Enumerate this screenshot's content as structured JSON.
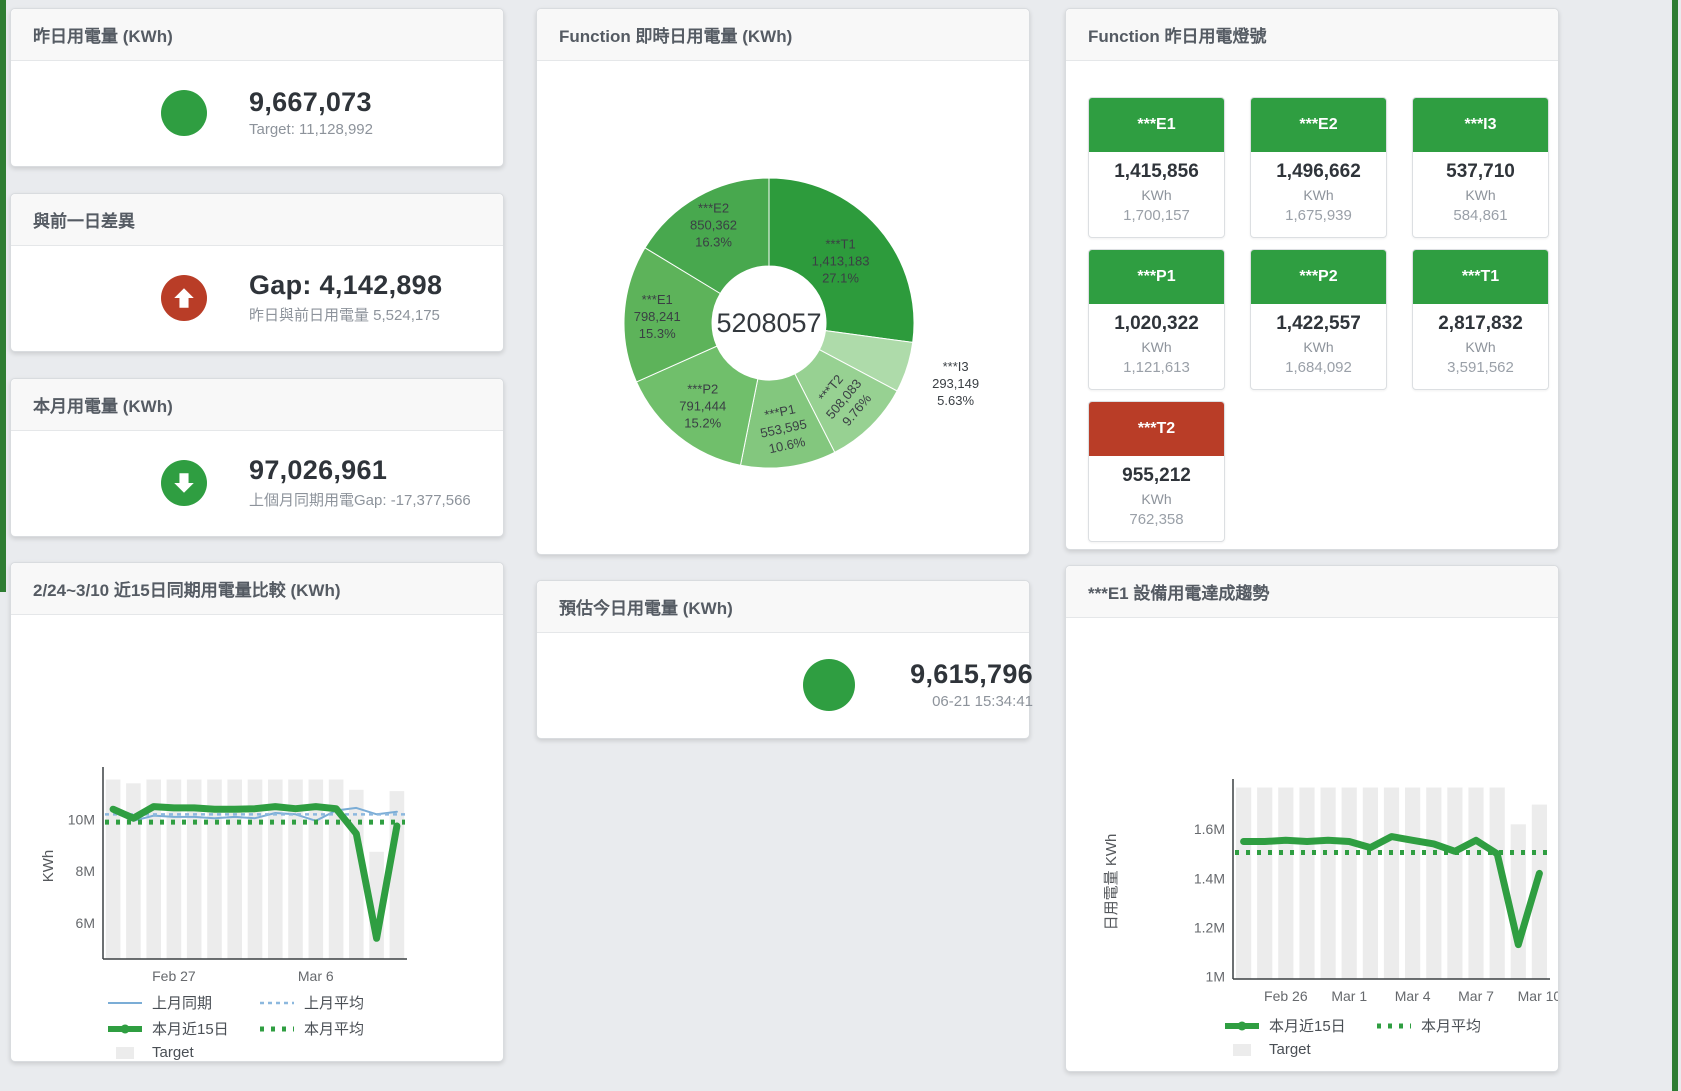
{
  "page": {
    "accent_green": "#2f9e41",
    "accent_red": "#b93d27",
    "bar_gray": "#ececec",
    "blue_line": "#7badd6",
    "blue_dash": "#8cb8de"
  },
  "cards": {
    "yesterday": {
      "title": "昨日用電量 (KWh)",
      "value": "9,667,073",
      "subtitle": "Target: 11,128,992"
    },
    "day_gap": {
      "title": "與前一日差異",
      "value": "Gap: 4,142,898",
      "subtitle": "昨日與前日用電量 5,524,175"
    },
    "month": {
      "title": "本月用電量 (KWh)",
      "value": "97,026,961",
      "subtitle": "上個月同期用電Gap: -17,377,566"
    },
    "estimate": {
      "title": "預估今日用電量 (KWh)",
      "value": "9,615,796",
      "subtitle": "06-21 15:34:41"
    },
    "donut_title": "Function 即時日用電量 (KWh)",
    "lights_title": "Function 昨日用電燈號",
    "left_chart_title": "2/24~3/10 近15日同期用電量比較 (KWh)",
    "right_chart_title": "***E1 設備用電達成趨勢"
  },
  "lights": {
    "status_colors": {
      "green": "#2f9e41",
      "red": "#b93d27"
    },
    "tiles": [
      {
        "label": "***E1",
        "value": "1,415,856",
        "unit": "KWh",
        "secondary": "1,700,157",
        "status": "green"
      },
      {
        "label": "***E2",
        "value": "1,496,662",
        "unit": "KWh",
        "secondary": "1,675,939",
        "status": "green"
      },
      {
        "label": "***I3",
        "value": "537,710",
        "unit": "KWh",
        "secondary": "584,861",
        "status": "green"
      },
      {
        "label": "***P1",
        "value": "1,020,322",
        "unit": "KWh",
        "secondary": "1,121,613",
        "status": "green"
      },
      {
        "label": "***P2",
        "value": "1,422,557",
        "unit": "KWh",
        "secondary": "1,684,092",
        "status": "green"
      },
      {
        "label": "***T1",
        "value": "2,817,832",
        "unit": "KWh",
        "secondary": "3,591,562",
        "status": "green"
      },
      {
        "label": "***T2",
        "value": "955,212",
        "unit": "KWh",
        "secondary": "762,358",
        "status": "red"
      }
    ]
  },
  "chart_data": [
    {
      "id": "realtime_donut",
      "type": "pie",
      "title": "Function 即時日用電量 (KWh)",
      "center_label": "5208057",
      "direction": "clockwise",
      "start_angle_deg": -90,
      "slices": [
        {
          "name": "***T1",
          "value": 1413183,
          "display": "1,413,183",
          "pct": "27.1%",
          "color": "#2d9b3c"
        },
        {
          "name": "***I3",
          "value": 293149,
          "display": "293,149",
          "pct": "5.63%",
          "color": "#aedbaa"
        },
        {
          "name": "***T2",
          "value": 508083,
          "display": "508,083",
          "pct": "9.76%",
          "color": "#97d192"
        },
        {
          "name": "***P1",
          "value": 553595,
          "display": "553,595",
          "pct": "10.6%",
          "color": "#83c77e"
        },
        {
          "name": "***P2",
          "value": 791444,
          "display": "791,444",
          "pct": "15.2%",
          "color": "#70bf6b"
        },
        {
          "name": "***E1",
          "value": 798241,
          "display": "798,241",
          "pct": "15.3%",
          "color": "#5db35a"
        },
        {
          "name": "***E2",
          "value": 850362,
          "display": "850,362",
          "pct": "16.3%",
          "color": "#48a84e"
        }
      ]
    },
    {
      "id": "compare_15d",
      "type": "line+bar",
      "title": "2/24~3/10 近15日同期用電量比較 (KWh)",
      "ylabel": "KWh",
      "ylim_millions": [
        4.6,
        11.8
      ],
      "yticks": [
        {
          "v": 6,
          "label": "6M"
        },
        {
          "v": 8,
          "label": "8M"
        },
        {
          "v": 10,
          "label": "10M"
        }
      ],
      "x_count": 15,
      "xticks": [
        {
          "i": 3,
          "label": "Feb 27"
        },
        {
          "i": 10,
          "label": "Mar 6"
        }
      ],
      "target_bars": [
        11.55,
        11.4,
        11.55,
        11.55,
        11.55,
        11.55,
        11.55,
        11.55,
        11.55,
        11.55,
        11.55,
        11.55,
        11.15,
        8.75,
        11.1
      ],
      "series": [
        {
          "name": "上月同期",
          "key": "blue-line",
          "values": [
            10.45,
            9.95,
            10.15,
            10.1,
            10.1,
            10.05,
            10.1,
            10.05,
            10.25,
            10.2,
            9.95,
            10.35,
            10.45,
            10.2,
            10.3
          ]
        },
        {
          "name": "上月平均",
          "key": "blue-dash",
          "constant": 10.2
        },
        {
          "name": "本月近15日",
          "key": "green-thick",
          "values": [
            10.4,
            10.05,
            10.5,
            10.45,
            10.45,
            10.4,
            10.4,
            10.42,
            10.5,
            10.42,
            10.5,
            10.42,
            9.45,
            5.4,
            9.75
          ]
        },
        {
          "name": "本月平均",
          "key": "green-dot",
          "constant": 9.9
        }
      ],
      "legend": [
        {
          "label": "上月同期",
          "key": "blue-line"
        },
        {
          "label": "上月平均",
          "key": "blue-dash"
        },
        {
          "label": "本月近15日",
          "key": "green-thick"
        },
        {
          "label": "本月平均",
          "key": "green-dot"
        },
        {
          "label": "Target",
          "key": "gray-bar"
        }
      ]
    },
    {
      "id": "e1_trend",
      "type": "line+bar",
      "title": "***E1 設備用電達成趨勢",
      "ylabel": "日用電量 KWh",
      "ylim_millions": [
        0.99,
        1.78
      ],
      "yticks": [
        {
          "v": 1,
          "label": "1M"
        },
        {
          "v": 1.2,
          "label": "1.2M"
        },
        {
          "v": 1.4,
          "label": "1.4M"
        },
        {
          "v": 1.6,
          "label": "1.6M"
        }
      ],
      "x_count": 15,
      "xticks": [
        {
          "i": 2,
          "label": "Feb 26"
        },
        {
          "i": 5,
          "label": "Mar 1"
        },
        {
          "i": 8,
          "label": "Mar 4"
        },
        {
          "i": 11,
          "label": "Mar 7"
        },
        {
          "i": 14,
          "label": "Mar 10"
        }
      ],
      "target_bars": [
        1.77,
        1.77,
        1.77,
        1.77,
        1.77,
        1.77,
        1.77,
        1.77,
        1.77,
        1.77,
        1.77,
        1.77,
        1.77,
        1.62,
        1.7
      ],
      "series": [
        {
          "name": "本月近15日",
          "key": "green-thick",
          "values": [
            1.55,
            1.55,
            1.555,
            1.55,
            1.555,
            1.55,
            1.525,
            1.57,
            1.555,
            1.54,
            1.51,
            1.555,
            1.5,
            1.13,
            1.42
          ]
        },
        {
          "name": "本月平均",
          "key": "green-dot",
          "constant": 1.505
        }
      ],
      "legend": [
        {
          "label": "本月近15日",
          "key": "green-thick"
        },
        {
          "label": "本月平均",
          "key": "green-dot"
        },
        {
          "label": "Target",
          "key": "gray-bar"
        }
      ]
    }
  ]
}
